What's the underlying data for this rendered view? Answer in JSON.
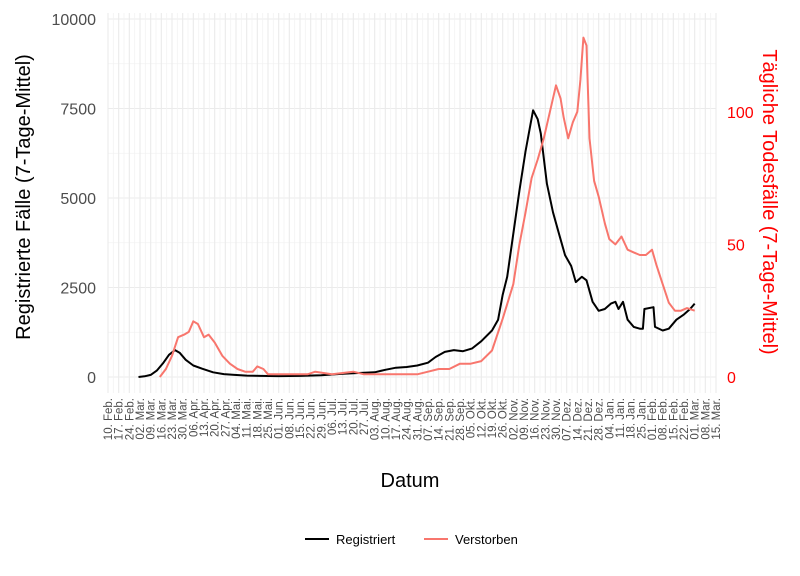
{
  "chart_data": {
    "type": "line",
    "xlabel": "Datum",
    "ylabel": "Registrierte Fälle (7-Tage-Mittel)",
    "y2label": "Tägliche Todesfälle (7-Tage-Mittel)",
    "ylim": [
      0,
      10000
    ],
    "y2lim": [
      0,
      135
    ],
    "yticks": [
      0,
      2500,
      5000,
      7500,
      10000
    ],
    "y2ticks": [
      0,
      50,
      100
    ],
    "xlim": [
      "2020-02-10",
      "2021-03-15"
    ],
    "grid": true,
    "legend_position": "bottom",
    "x_tick_dates": [
      "2020-02-10",
      "2020-02-17",
      "2020-02-24",
      "2020-03-02",
      "2020-03-09",
      "2020-03-16",
      "2020-03-23",
      "2020-03-30",
      "2020-04-06",
      "2020-04-13",
      "2020-04-20",
      "2020-04-27",
      "2020-05-04",
      "2020-05-11",
      "2020-05-18",
      "2020-05-25",
      "2020-06-01",
      "2020-06-08",
      "2020-06-15",
      "2020-06-22",
      "2020-06-29",
      "2020-07-06",
      "2020-07-13",
      "2020-07-20",
      "2020-07-27",
      "2020-08-03",
      "2020-08-10",
      "2020-08-17",
      "2020-08-24",
      "2020-08-31",
      "2020-09-07",
      "2020-09-14",
      "2020-09-21",
      "2020-09-28",
      "2020-10-05",
      "2020-10-12",
      "2020-10-19",
      "2020-10-26",
      "2020-11-02",
      "2020-11-09",
      "2020-11-16",
      "2020-11-23",
      "2020-11-30",
      "2020-12-07",
      "2020-12-14",
      "2020-12-21",
      "2020-12-28",
      "2021-01-04",
      "2021-01-11",
      "2021-01-18",
      "2021-01-25",
      "2021-02-01",
      "2021-02-08",
      "2021-02-15",
      "2021-02-22",
      "2021-03-01",
      "2021-03-08",
      "2021-03-15"
    ],
    "x_tick_labels": [
      "10. Feb.",
      "17. Feb.",
      "24. Feb.",
      "02. Mar.",
      "09. Mar.",
      "16. Mar.",
      "23. Mar.",
      "30. Mar.",
      "06. Apr.",
      "13. Apr.",
      "20. Apr.",
      "27. Apr.",
      "04. Mai.",
      "11. Mai.",
      "18. Mai.",
      "25. Mai.",
      "01. Jun.",
      "08. Jun.",
      "15. Jun.",
      "22. Jun.",
      "29. Jun.",
      "06. Jul.",
      "13. Jul.",
      "20. Jul.",
      "27. Jul.",
      "03. Aug.",
      "10. Aug.",
      "17. Aug.",
      "24. Aug.",
      "31. Aug.",
      "07. Sep.",
      "14. Sep.",
      "21. Sep.",
      "28. Sep.",
      "05. Okt.",
      "12. Okt.",
      "19. Okt.",
      "26. Okt.",
      "02. Nov.",
      "09. Nov.",
      "16. Nov.",
      "23. Nov.",
      "30. Nov.",
      "07. Dez.",
      "14. Dez.",
      "21. Dez.",
      "28. Dez.",
      "04. Jan.",
      "11. Jan.",
      "18. Jan.",
      "25. Jan.",
      "01. Feb.",
      "08. Feb.",
      "15. Feb.",
      "22. Feb.",
      "01. Mar.",
      "08. Mar.",
      "15. Mar."
    ],
    "series": [
      {
        "name": "Registriert",
        "axis": "left",
        "color": "#000000",
        "points": [
          [
            "2020-03-01",
            0
          ],
          [
            "2020-03-05",
            20
          ],
          [
            "2020-03-09",
            60
          ],
          [
            "2020-03-13",
            180
          ],
          [
            "2020-03-17",
            380
          ],
          [
            "2020-03-21",
            620
          ],
          [
            "2020-03-25",
            750
          ],
          [
            "2020-03-28",
            680
          ],
          [
            "2020-04-01",
            480
          ],
          [
            "2020-04-06",
            320
          ],
          [
            "2020-04-12",
            230
          ],
          [
            "2020-04-19",
            130
          ],
          [
            "2020-04-26",
            80
          ],
          [
            "2020-05-03",
            60
          ],
          [
            "2020-05-11",
            40
          ],
          [
            "2020-05-20",
            30
          ],
          [
            "2020-06-01",
            25
          ],
          [
            "2020-06-15",
            30
          ],
          [
            "2020-06-29",
            50
          ],
          [
            "2020-07-13",
            90
          ],
          [
            "2020-07-27",
            120
          ],
          [
            "2020-08-03",
            130
          ],
          [
            "2020-08-10",
            200
          ],
          [
            "2020-08-17",
            260
          ],
          [
            "2020-08-24",
            280
          ],
          [
            "2020-08-31",
            320
          ],
          [
            "2020-09-07",
            400
          ],
          [
            "2020-09-12",
            560
          ],
          [
            "2020-09-18",
            700
          ],
          [
            "2020-09-24",
            750
          ],
          [
            "2020-09-30",
            720
          ],
          [
            "2020-10-06",
            800
          ],
          [
            "2020-10-12",
            1000
          ],
          [
            "2020-10-19",
            1300
          ],
          [
            "2020-10-23",
            1600
          ],
          [
            "2020-10-26",
            2300
          ],
          [
            "2020-10-29",
            2800
          ],
          [
            "2020-11-02",
            4000
          ],
          [
            "2020-11-06",
            5200
          ],
          [
            "2020-11-10",
            6300
          ],
          [
            "2020-11-13",
            7000
          ],
          [
            "2020-11-15",
            7450
          ],
          [
            "2020-11-18",
            7200
          ],
          [
            "2020-11-20",
            6800
          ],
          [
            "2020-11-24",
            5400
          ],
          [
            "2020-11-28",
            4600
          ],
          [
            "2020-12-02",
            4000
          ],
          [
            "2020-12-06",
            3400
          ],
          [
            "2020-12-10",
            3100
          ],
          [
            "2020-12-13",
            2650
          ],
          [
            "2020-12-17",
            2800
          ],
          [
            "2020-12-20",
            2700
          ],
          [
            "2020-12-24",
            2100
          ],
          [
            "2020-12-28",
            1850
          ],
          [
            "2021-01-01",
            1900
          ],
          [
            "2021-01-05",
            2050
          ],
          [
            "2021-01-08",
            2100
          ],
          [
            "2021-01-10",
            1900
          ],
          [
            "2021-01-13",
            2100
          ],
          [
            "2021-01-16",
            1600
          ],
          [
            "2021-01-20",
            1400
          ],
          [
            "2021-01-24",
            1350
          ],
          [
            "2021-01-26",
            1350
          ],
          [
            "2021-01-27",
            1900
          ],
          [
            "2021-02-02",
            1950
          ],
          [
            "2021-02-03",
            1400
          ],
          [
            "2021-02-08",
            1300
          ],
          [
            "2021-02-12",
            1350
          ],
          [
            "2021-02-17",
            1600
          ],
          [
            "2021-02-22",
            1750
          ],
          [
            "2021-02-26",
            1900
          ],
          [
            "2021-03-01",
            2050
          ]
        ]
      },
      {
        "name": "Verstorben",
        "axis": "right",
        "color": "#f8766d",
        "points": [
          [
            "2020-03-15",
            0
          ],
          [
            "2020-03-19",
            3
          ],
          [
            "2020-03-23",
            8
          ],
          [
            "2020-03-27",
            15
          ],
          [
            "2020-03-31",
            16
          ],
          [
            "2020-04-03",
            17
          ],
          [
            "2020-04-06",
            21
          ],
          [
            "2020-04-09",
            20
          ],
          [
            "2020-04-13",
            15
          ],
          [
            "2020-04-16",
            16
          ],
          [
            "2020-04-20",
            13
          ],
          [
            "2020-04-25",
            8
          ],
          [
            "2020-04-30",
            5
          ],
          [
            "2020-05-05",
            3
          ],
          [
            "2020-05-10",
            2
          ],
          [
            "2020-05-15",
            2
          ],
          [
            "2020-05-18",
            4
          ],
          [
            "2020-05-22",
            3
          ],
          [
            "2020-05-25",
            1
          ],
          [
            "2020-06-01",
            1
          ],
          [
            "2020-06-10",
            1
          ],
          [
            "2020-06-20",
            1
          ],
          [
            "2020-06-25",
            2
          ],
          [
            "2020-07-06",
            1
          ],
          [
            "2020-07-20",
            2
          ],
          [
            "2020-07-27",
            1
          ],
          [
            "2020-08-03",
            1
          ],
          [
            "2020-08-17",
            1
          ],
          [
            "2020-08-31",
            1
          ],
          [
            "2020-09-07",
            2
          ],
          [
            "2020-09-14",
            3
          ],
          [
            "2020-09-21",
            3
          ],
          [
            "2020-09-28",
            5
          ],
          [
            "2020-10-05",
            5
          ],
          [
            "2020-10-12",
            6
          ],
          [
            "2020-10-19",
            10
          ],
          [
            "2020-10-26",
            22
          ],
          [
            "2020-11-02",
            35
          ],
          [
            "2020-11-06",
            50
          ],
          [
            "2020-11-10",
            62
          ],
          [
            "2020-11-14",
            75
          ],
          [
            "2020-11-18",
            82
          ],
          [
            "2020-11-22",
            90
          ],
          [
            "2020-11-26",
            100
          ],
          [
            "2020-11-30",
            110
          ],
          [
            "2020-12-03",
            105
          ],
          [
            "2020-12-05",
            98
          ],
          [
            "2020-12-08",
            90
          ],
          [
            "2020-12-11",
            96
          ],
          [
            "2020-12-14",
            100
          ],
          [
            "2020-12-16",
            112
          ],
          [
            "2020-12-18",
            128
          ],
          [
            "2020-12-20",
            125
          ],
          [
            "2020-12-22",
            90
          ],
          [
            "2020-12-25",
            74
          ],
          [
            "2020-12-28",
            68
          ],
          [
            "2021-01-01",
            58
          ],
          [
            "2021-01-04",
            52
          ],
          [
            "2021-01-08",
            50
          ],
          [
            "2021-01-12",
            53
          ],
          [
            "2021-01-16",
            48
          ],
          [
            "2021-01-20",
            47
          ],
          [
            "2021-01-24",
            46
          ],
          [
            "2021-01-28",
            46
          ],
          [
            "2021-02-01",
            48
          ],
          [
            "2021-02-04",
            42
          ],
          [
            "2021-02-08",
            35
          ],
          [
            "2021-02-12",
            28
          ],
          [
            "2021-02-16",
            25
          ],
          [
            "2021-02-20",
            25
          ],
          [
            "2021-02-24",
            26
          ],
          [
            "2021-03-01",
            25
          ]
        ]
      }
    ]
  }
}
